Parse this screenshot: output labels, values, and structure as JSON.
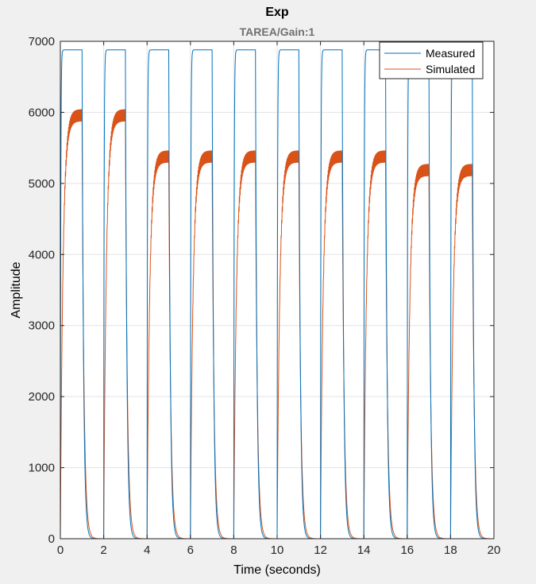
{
  "chart_data": {
    "type": "line",
    "title": "Exp",
    "subtitle": "TAREA/Gain:1",
    "xlabel": "Time (seconds)",
    "ylabel": "Amplitude",
    "xlim": [
      0,
      20
    ],
    "ylim": [
      0,
      7000
    ],
    "xticks": [
      "0",
      "2",
      "4",
      "6",
      "8",
      "10",
      "12",
      "14",
      "16",
      "18",
      "20"
    ],
    "yticks": [
      "0",
      "1000",
      "2000",
      "3000",
      "4000",
      "5000",
      "6000",
      "7000"
    ],
    "grid": true,
    "legend_position": "top-right",
    "pulses": {
      "period": 2,
      "on_start": [
        0,
        2,
        4,
        6,
        8,
        10,
        12,
        14,
        16,
        18
      ],
      "on_duration": 1,
      "measured_levels": [
        6880,
        6880,
        6880,
        6880,
        6880,
        6880,
        6880,
        6880,
        6880,
        6880
      ],
      "simulated_levels": [
        5960,
        5960,
        5380,
        5380,
        5380,
        5380,
        5380,
        5380,
        5190,
        5190
      ],
      "simulated_ripple": [
        90,
        90,
        90,
        90,
        90,
        90,
        90,
        90,
        90,
        90
      ]
    },
    "series": [
      {
        "name": "Measured",
        "color": "#0072BD"
      },
      {
        "name": "Simulated",
        "color": "#D95319"
      }
    ]
  }
}
